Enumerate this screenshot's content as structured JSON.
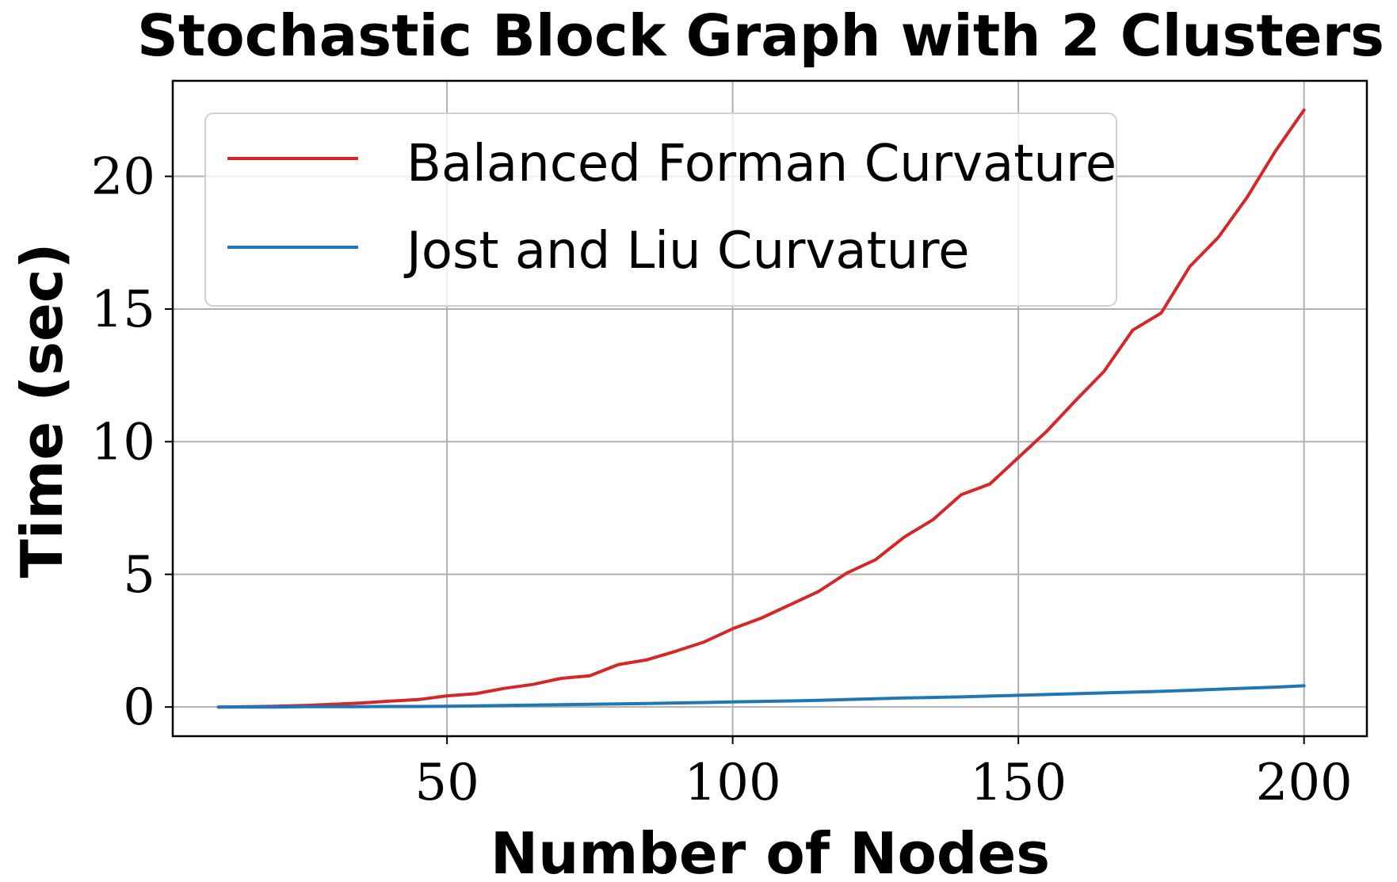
{
  "chart_data": {
    "type": "line",
    "title": "Stochastic Block Graph with 2 Clusters",
    "xlabel": "Number of Nodes",
    "ylabel": "Time (sec)",
    "xlim": [
      2,
      211
    ],
    "ylim": [
      -1.1,
      23.6
    ],
    "xticks": [
      50,
      100,
      150,
      200
    ],
    "yticks": [
      0,
      5,
      10,
      15,
      20
    ],
    "grid": true,
    "legend_position": "top-left",
    "x": [
      10,
      15,
      20,
      25,
      30,
      35,
      40,
      45,
      50,
      55,
      60,
      65,
      70,
      75,
      80,
      85,
      90,
      95,
      100,
      105,
      110,
      115,
      120,
      125,
      130,
      135,
      140,
      145,
      150,
      155,
      160,
      165,
      170,
      175,
      180,
      185,
      190,
      195,
      200
    ],
    "series": [
      {
        "name": "Balanced Forman Curvature",
        "color": "#d62728",
        "values": [
          0.0,
          0.01,
          0.03,
          0.06,
          0.1,
          0.15,
          0.22,
          0.28,
          0.42,
          0.5,
          0.7,
          0.85,
          1.08,
          1.18,
          1.6,
          1.78,
          2.1,
          2.45,
          2.95,
          3.35,
          3.85,
          4.35,
          5.05,
          5.55,
          6.4,
          7.05,
          8.0,
          8.4,
          9.4,
          10.4,
          11.55,
          12.65,
          14.2,
          14.85,
          16.6,
          17.7,
          19.2,
          20.95,
          22.5
        ]
      },
      {
        "name": "Jost and Liu Curvature",
        "color": "#1f77b4",
        "values": [
          0.0,
          0.0,
          0.0,
          0.01,
          0.01,
          0.01,
          0.02,
          0.02,
          0.03,
          0.04,
          0.06,
          0.07,
          0.09,
          0.1,
          0.12,
          0.13,
          0.15,
          0.17,
          0.19,
          0.21,
          0.23,
          0.25,
          0.28,
          0.31,
          0.34,
          0.36,
          0.38,
          0.41,
          0.44,
          0.47,
          0.5,
          0.53,
          0.56,
          0.59,
          0.63,
          0.67,
          0.71,
          0.75,
          0.8
        ]
      }
    ]
  }
}
